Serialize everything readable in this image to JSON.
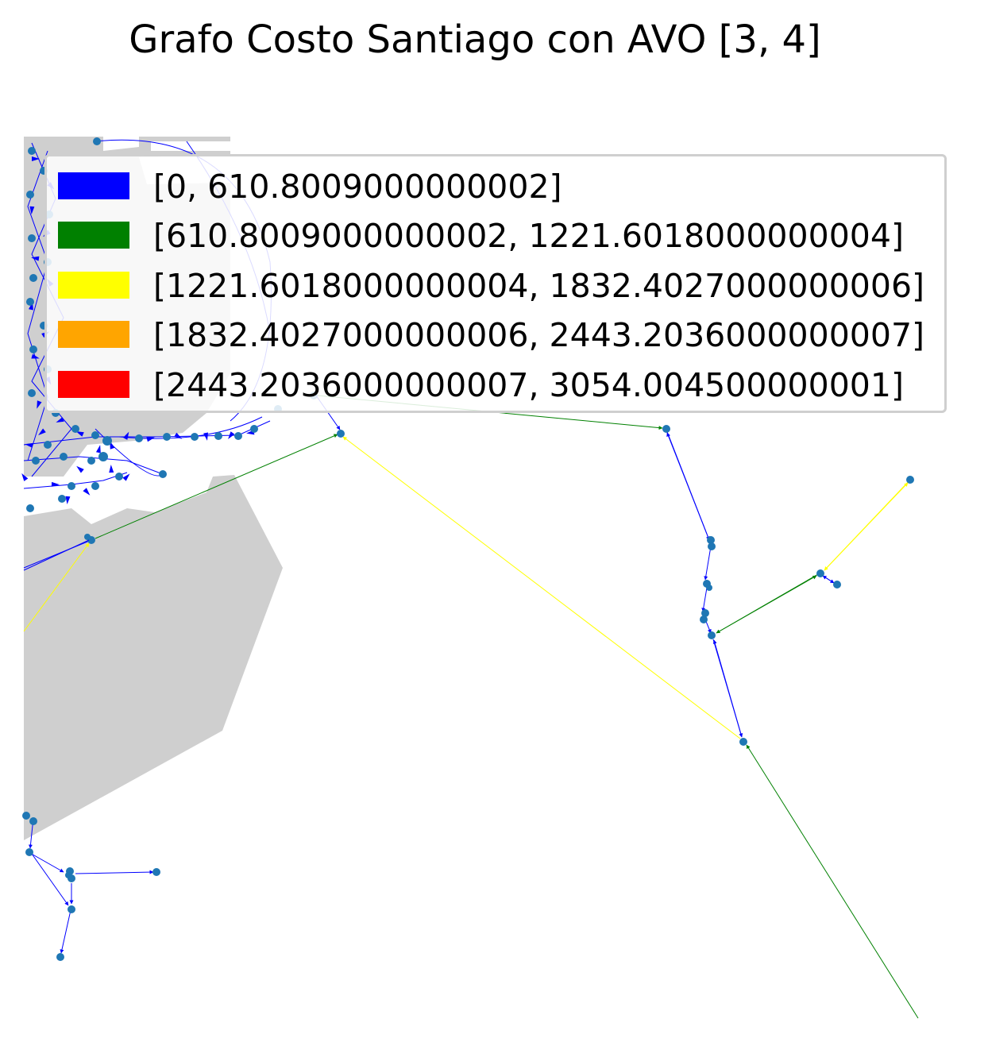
{
  "title": "Grafo Costo Santiago con AVO [3, 4]",
  "colors": {
    "background_area": "#cfcfcf",
    "node": "#1f77b4",
    "bin_0": "#0000ff",
    "bin_1": "#008000",
    "bin_2": "#ffff00",
    "bin_3": "#ffa500",
    "bin_4": "#ff0000"
  },
  "legend": {
    "placement": "upper-right",
    "items": [
      {
        "label": "[0, 610.8009000000002]",
        "color": "#0000ff"
      },
      {
        "label": "[610.8009000000002, 1221.6018000000004]",
        "color": "#008000"
      },
      {
        "label": "[1221.6018000000004, 1832.4027000000006]",
        "color": "#ffff00"
      },
      {
        "label": "[1832.4027000000006, 2443.2036000000007]",
        "color": "#ffa500"
      },
      {
        "label": "[2443.2036000000007, 3054.004500000001]",
        "color": "#ff0000"
      }
    ]
  }
}
